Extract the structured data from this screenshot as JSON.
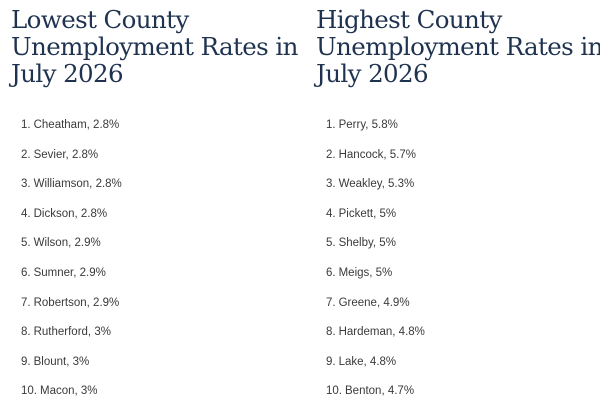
{
  "lowest": {
    "title_lines": [
      "Lowest County",
      "Unemployment Rates in",
      "July 2026"
    ],
    "items": [
      {
        "rank": "1.",
        "text": "Cheatham, 2.8%"
      },
      {
        "rank": "2.",
        "text": "Sevier, 2.8%"
      },
      {
        "rank": "3.",
        "text": "Williamson, 2.8%"
      },
      {
        "rank": "4.",
        "text": "Dickson, 2.8%"
      },
      {
        "rank": "5.",
        "text": "Wilson, 2.9%"
      },
      {
        "rank": "6.",
        "text": "Sumner, 2.9%"
      },
      {
        "rank": "7.",
        "text": "Robertson, 2.9%"
      },
      {
        "rank": "8.",
        "text": "Rutherford, 3%"
      },
      {
        "rank": "9.",
        "text": "Blount, 3%"
      },
      {
        "rank": "10.",
        "text": "Macon, 3%"
      }
    ]
  },
  "highest": {
    "title_lines": [
      "Highest County",
      "Unemployment Rates in",
      "July 2026"
    ],
    "items": [
      {
        "rank": "1.",
        "text": "Perry, 5.8%"
      },
      {
        "rank": "2.",
        "text": "Hancock, 5.7%"
      },
      {
        "rank": "3.",
        "text": "Weakley, 5.3%"
      },
      {
        "rank": "4.",
        "text": "Pickett, 5%"
      },
      {
        "rank": "5.",
        "text": "Shelby, 5%"
      },
      {
        "rank": "6.",
        "text": "Meigs, 5%"
      },
      {
        "rank": "7.",
        "text": "Greene, 4.9%"
      },
      {
        "rank": "8.",
        "text": "Hardeman, 4.8%"
      },
      {
        "rank": "9.",
        "text": "Lake, 4.8%"
      },
      {
        "rank": "10.",
        "text": "Benton, 4.7%"
      }
    ]
  }
}
